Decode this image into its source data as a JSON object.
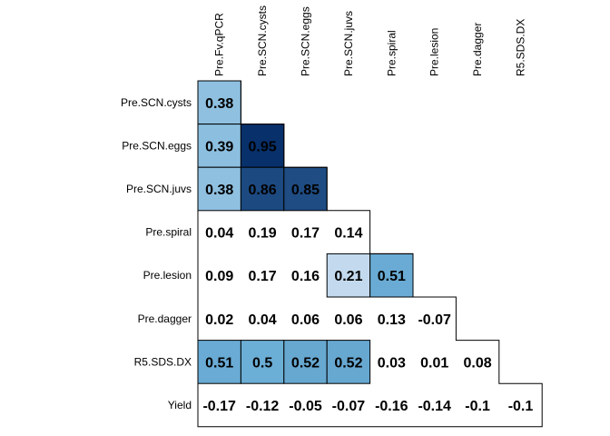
{
  "chart_data": {
    "type": "heatmap",
    "title": "",
    "columns": [
      "Pre.Fv.qPCR",
      "Pre.SCN.cysts",
      "Pre.SCN.eggs",
      "Pre.SCN.juvs",
      "Pre.spiral",
      "Pre.lesion",
      "Pre.dagger",
      "R5.SDS.DX"
    ],
    "rows": [
      "Pre.SCN.cysts",
      "Pre.SCN.eggs",
      "Pre.SCN.juvs",
      "Pre.spiral",
      "Pre.lesion",
      "Pre.dagger",
      "R5.SDS.DX",
      "Yield"
    ],
    "values": [
      [
        "0.38"
      ],
      [
        "0.39",
        "0.95"
      ],
      [
        "0.38",
        "0.86",
        "0.85"
      ],
      [
        "0.04",
        "0.19",
        "0.17",
        "0.14"
      ],
      [
        "0.09",
        "0.17",
        "0.16",
        "0.21",
        "0.51"
      ],
      [
        "0.02",
        "0.04",
        "0.06",
        "0.06",
        "0.13",
        "-0.07"
      ],
      [
        "0.51",
        "0.5",
        "0.52",
        "0.52",
        "0.03",
        "0.01",
        "0.08"
      ],
      [
        "-0.17",
        "-0.12",
        "-0.05",
        "-0.07",
        "-0.16",
        "-0.14",
        "-0.1",
        "-0.1"
      ]
    ],
    "highlighted_cells": [
      [
        0,
        0
      ],
      [
        1,
        0
      ],
      [
        1,
        1
      ],
      [
        2,
        0
      ],
      [
        2,
        1
      ],
      [
        2,
        2
      ],
      [
        4,
        3
      ],
      [
        4,
        4
      ],
      [
        6,
        0
      ],
      [
        6,
        1
      ],
      [
        6,
        2
      ],
      [
        6,
        3
      ]
    ],
    "color_scale": {
      "low": "#c6dbef",
      "mid": "#6baed6",
      "high": "#08306b",
      "text_dark": "#000000"
    }
  }
}
